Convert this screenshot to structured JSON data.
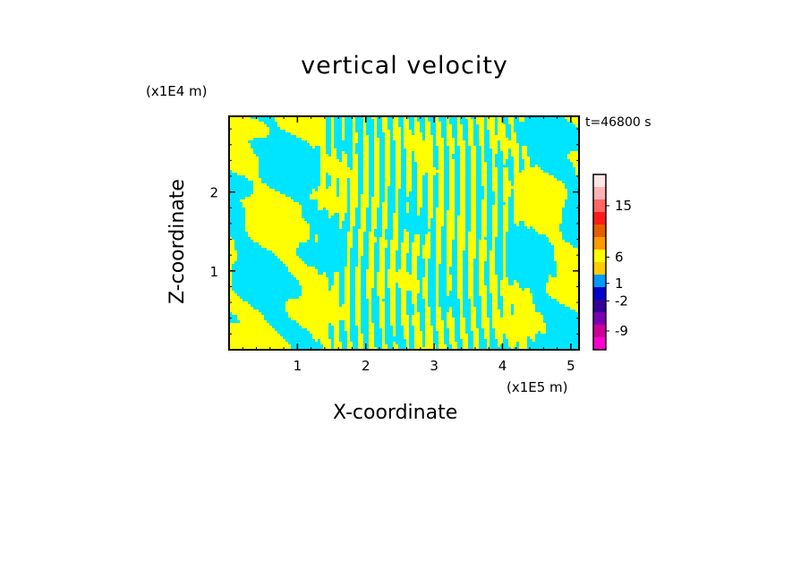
{
  "chart_data": {
    "type": "heatmap",
    "title": "vertical velocity",
    "xlabel": "X-coordinate",
    "ylabel": "Z-coordinate",
    "x_unit": "(x1E5 m)",
    "y_unit": "(x1E4 m)",
    "time_label": "t=46800 s",
    "x_ticks": [
      1,
      2,
      3,
      4,
      5
    ],
    "y_ticks": [
      1,
      2
    ],
    "xlim": [
      0,
      5.12
    ],
    "ylim": [
      0,
      2.96
    ],
    "fill_colors": {
      "positive": "#ffff00",
      "negative": "#00e5ff"
    },
    "colorbar": {
      "tick_labels": [
        "15",
        "6",
        "1",
        "-2",
        "-9"
      ],
      "colors": [
        "#ffe6e6",
        "#ffb3b3",
        "#ff6666",
        "#ff1a1a",
        "#e65c00",
        "#ff9900",
        "#ffff00",
        "#ffcc00",
        "#0099ff",
        "#0000cc",
        "#330099",
        "#7a00b3",
        "#cc0099",
        "#ff00cc"
      ]
    }
  }
}
